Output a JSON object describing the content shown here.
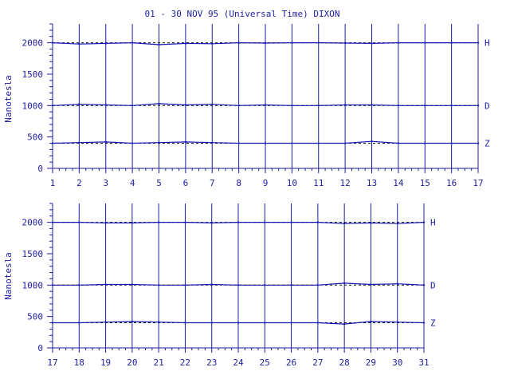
{
  "title": "01 - 30 NOV 95 (Universal Time) DIXON",
  "colors": {
    "axis": "#1c1ca0",
    "trace": "#1515b0",
    "baseline": "#111111",
    "background": "#ffffff"
  },
  "chart_data": [
    {
      "type": "line",
      "panel": "top",
      "title": "01 - 30 NOV 95 (Universal Time) DIXON",
      "ylabel": "Nanotesla",
      "xlabel": "",
      "xlim": [
        1,
        17
      ],
      "ylim": [
        0,
        2300
      ],
      "xticks": [
        "1",
        "2",
        "3",
        "4",
        "5",
        "6",
        "7",
        "8",
        "9",
        "10",
        "11",
        "12",
        "13",
        "14",
        "15",
        "16",
        "17"
      ],
      "yticks": [
        "0",
        "500",
        "1000",
        "1500",
        "2000"
      ],
      "grid": "vertical day lines",
      "series": [
        {
          "name": "H",
          "baseline": 2000,
          "values": [
            2000,
            1980,
            1990,
            2000,
            1970,
            1990,
            1985,
            2000,
            1995,
            2000,
            2000,
            1995,
            1990,
            2000,
            2000,
            2000,
            2000
          ]
        },
        {
          "name": "D",
          "baseline": 1000,
          "values": [
            1000,
            1020,
            1010,
            1000,
            1030,
            1010,
            1020,
            1000,
            1010,
            1000,
            1000,
            1010,
            1010,
            1000,
            1000,
            1000,
            1000
          ]
        },
        {
          "name": "Z",
          "baseline": 400,
          "values": [
            400,
            410,
            420,
            400,
            410,
            420,
            410,
            400,
            400,
            400,
            400,
            400,
            430,
            400,
            400,
            400,
            400
          ]
        }
      ]
    },
    {
      "type": "line",
      "panel": "bottom",
      "ylabel": "Nanotesla",
      "xlabel": "",
      "xlim": [
        17,
        31
      ],
      "ylim": [
        0,
        2300
      ],
      "xticks": [
        "17",
        "18",
        "19",
        "20",
        "21",
        "22",
        "23",
        "24",
        "25",
        "26",
        "27",
        "28",
        "29",
        "30",
        "31"
      ],
      "yticks": [
        "0",
        "500",
        "1000",
        "1500",
        "2000"
      ],
      "grid": "vertical day lines",
      "series": [
        {
          "name": "H",
          "baseline": 2000,
          "values": [
            2000,
            2000,
            1990,
            1990,
            2000,
            2000,
            1990,
            2000,
            2000,
            2000,
            2000,
            1980,
            1990,
            1980,
            2000
          ]
        },
        {
          "name": "D",
          "baseline": 1000,
          "values": [
            1000,
            1000,
            1010,
            1010,
            1000,
            1000,
            1010,
            1000,
            1000,
            1000,
            1000,
            1030,
            1010,
            1020,
            1000
          ]
        },
        {
          "name": "Z",
          "baseline": 400,
          "values": [
            400,
            400,
            410,
            420,
            410,
            400,
            400,
            400,
            400,
            400,
            400,
            380,
            420,
            410,
            400
          ]
        }
      ]
    }
  ]
}
